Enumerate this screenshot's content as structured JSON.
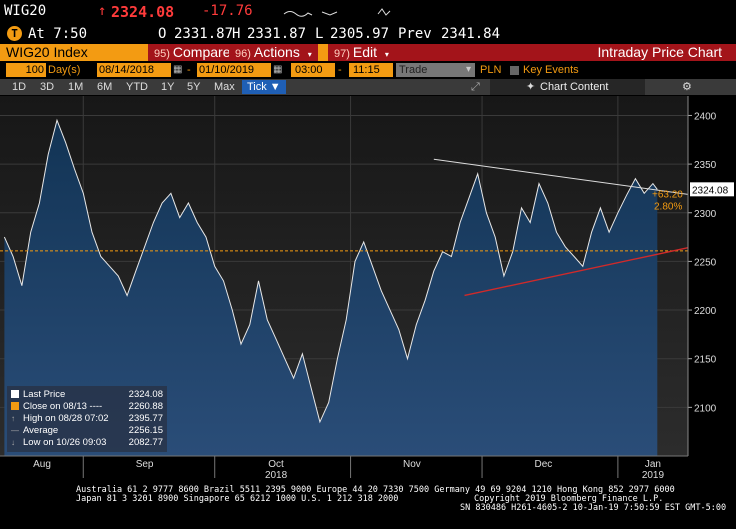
{
  "header": {
    "ticker": "WIG20",
    "arrow": "↑",
    "last": "2324.08",
    "change": "-17.76",
    "badge": "T",
    "time": "At 7:50",
    "open_label": "O",
    "open": "2331.87",
    "high_label": "H",
    "high": "2331.87",
    "low_label": "L",
    "low": "2305.97",
    "prev_label": "Prev",
    "prev": "2341.84"
  },
  "toolbar": {
    "security": "WIG20 Index",
    "compare_num": "95)",
    "compare": "Compare",
    "actions_num": "96)",
    "actions": "Actions",
    "edit_num": "97)",
    "edit": "Edit",
    "title": "Intraday Price Chart"
  },
  "controls": {
    "period_value": "100",
    "period_unit": "Day(s)",
    "start_date": "08/14/2018",
    "end_date": "01/10/2019",
    "start_time": "03:00",
    "end_time": "11:15",
    "field": "Trade",
    "currency": "PLN",
    "key_events": "Key Events"
  },
  "ranges": [
    "1D",
    "3D",
    "1M",
    "6M",
    "YTD",
    "1Y",
    "5Y",
    "Max"
  ],
  "tick_button": "Tick ▼",
  "chart_content": "Chart Content",
  "chart_data": {
    "type": "line",
    "series": [
      {
        "name": "Last Price",
        "x": [
          "2018-08-14",
          "2018-08-16",
          "2018-08-18",
          "2018-08-20",
          "2018-08-22",
          "2018-08-24",
          "2018-08-26",
          "2018-08-28",
          "2018-08-30",
          "2018-09-01",
          "2018-09-03",
          "2018-09-05",
          "2018-09-07",
          "2018-09-09",
          "2018-09-11",
          "2018-09-13",
          "2018-09-15",
          "2018-09-17",
          "2018-09-19",
          "2018-09-21",
          "2018-09-23",
          "2018-09-25",
          "2018-09-27",
          "2018-09-29",
          "2018-10-01",
          "2018-10-03",
          "2018-10-05",
          "2018-10-07",
          "2018-10-09",
          "2018-10-11",
          "2018-10-13",
          "2018-10-15",
          "2018-10-17",
          "2018-10-19",
          "2018-10-21",
          "2018-10-23",
          "2018-10-25",
          "2018-10-27",
          "2018-10-29",
          "2018-10-31",
          "2018-11-02",
          "2018-11-04",
          "2018-11-06",
          "2018-11-08",
          "2018-11-10",
          "2018-11-12",
          "2018-11-14",
          "2018-11-16",
          "2018-11-18",
          "2018-11-20",
          "2018-11-22",
          "2018-11-24",
          "2018-11-26",
          "2018-11-28",
          "2018-11-30",
          "2018-12-02",
          "2018-12-04",
          "2018-12-06",
          "2018-12-08",
          "2018-12-10",
          "2018-12-12",
          "2018-12-14",
          "2018-12-16",
          "2018-12-18",
          "2018-12-20",
          "2018-12-22",
          "2018-12-24",
          "2018-12-26",
          "2018-12-28",
          "2018-12-30",
          "2019-01-01",
          "2019-01-03",
          "2019-01-05",
          "2019-01-07",
          "2019-01-09",
          "2019-01-10"
        ],
        "y": [
          2275,
          2255,
          2225,
          2280,
          2310,
          2360,
          2395,
          2372,
          2345,
          2320,
          2280,
          2255,
          2245,
          2235,
          2215,
          2240,
          2265,
          2290,
          2310,
          2320,
          2295,
          2310,
          2290,
          2275,
          2245,
          2230,
          2200,
          2165,
          2185,
          2230,
          2190,
          2170,
          2150,
          2130,
          2155,
          2120,
          2085,
          2105,
          2150,
          2190,
          2250,
          2270,
          2245,
          2220,
          2200,
          2180,
          2150,
          2185,
          2210,
          2240,
          2260,
          2255,
          2290,
          2315,
          2340,
          2300,
          2275,
          2235,
          2260,
          2305,
          2290,
          2330,
          2310,
          2280,
          2265,
          2255,
          2245,
          2280,
          2305,
          2280,
          2300,
          2318,
          2335,
          2320,
          2330,
          2324
        ]
      }
    ],
    "ylim": [
      2050,
      2420
    ],
    "yticks": [
      "2400",
      "2350",
      "2300",
      "2250",
      "2200",
      "2150",
      "2100"
    ],
    "xticks": [
      "Aug",
      "Sep",
      "Oct",
      "Nov",
      "Dec",
      "Jan"
    ],
    "x_secondary": [
      "2018",
      "2019"
    ],
    "reference_line": {
      "name": "Close on 08/13",
      "value": 2260.88
    },
    "trendlines": [
      {
        "name": "upper",
        "from": [
          "2018-11-20",
          2355
        ],
        "to": [
          "2019-01-10",
          2322
        ]
      },
      {
        "name": "lower",
        "from": [
          "2018-11-27",
          2215
        ],
        "to": [
          "2019-01-10",
          2262
        ]
      }
    ],
    "price_tag": "2324.08",
    "change_tag": "+63.20",
    "change_pct_tag": "2.80%",
    "grid": true,
    "legend": [
      {
        "label": "Last Price",
        "value": "2324.08",
        "color": "#ffffff"
      },
      {
        "label": "Close on 08/13 ----",
        "value": "2260.88",
        "color": "#f39b12"
      },
      {
        "label": "High on 08/28 07:02",
        "value": "2395.77",
        "color": ""
      },
      {
        "label": "Average",
        "value": "2256.15",
        "color": ""
      },
      {
        "label": "Low on 10/26 09:03",
        "value": "2082.77",
        "color": ""
      }
    ]
  },
  "footer": {
    "line1": "Australia 61 2 9777 8600 Brazil 5511 2395 9000 Europe 44 20 7330 7500 Germany 49 69 9204 1210 Hong Kong 852 2977 6000",
    "line2a": "Japan 81 3 3201 8900        Singapore 65 6212 1000        U.S. 1 212 318 2000",
    "line2b": "Copyright 2019 Bloomberg Finance L.P.",
    "line3": "SN 830486 H261-4605-2 10-Jan-19  7:50:59 EST  GMT-5:00"
  }
}
